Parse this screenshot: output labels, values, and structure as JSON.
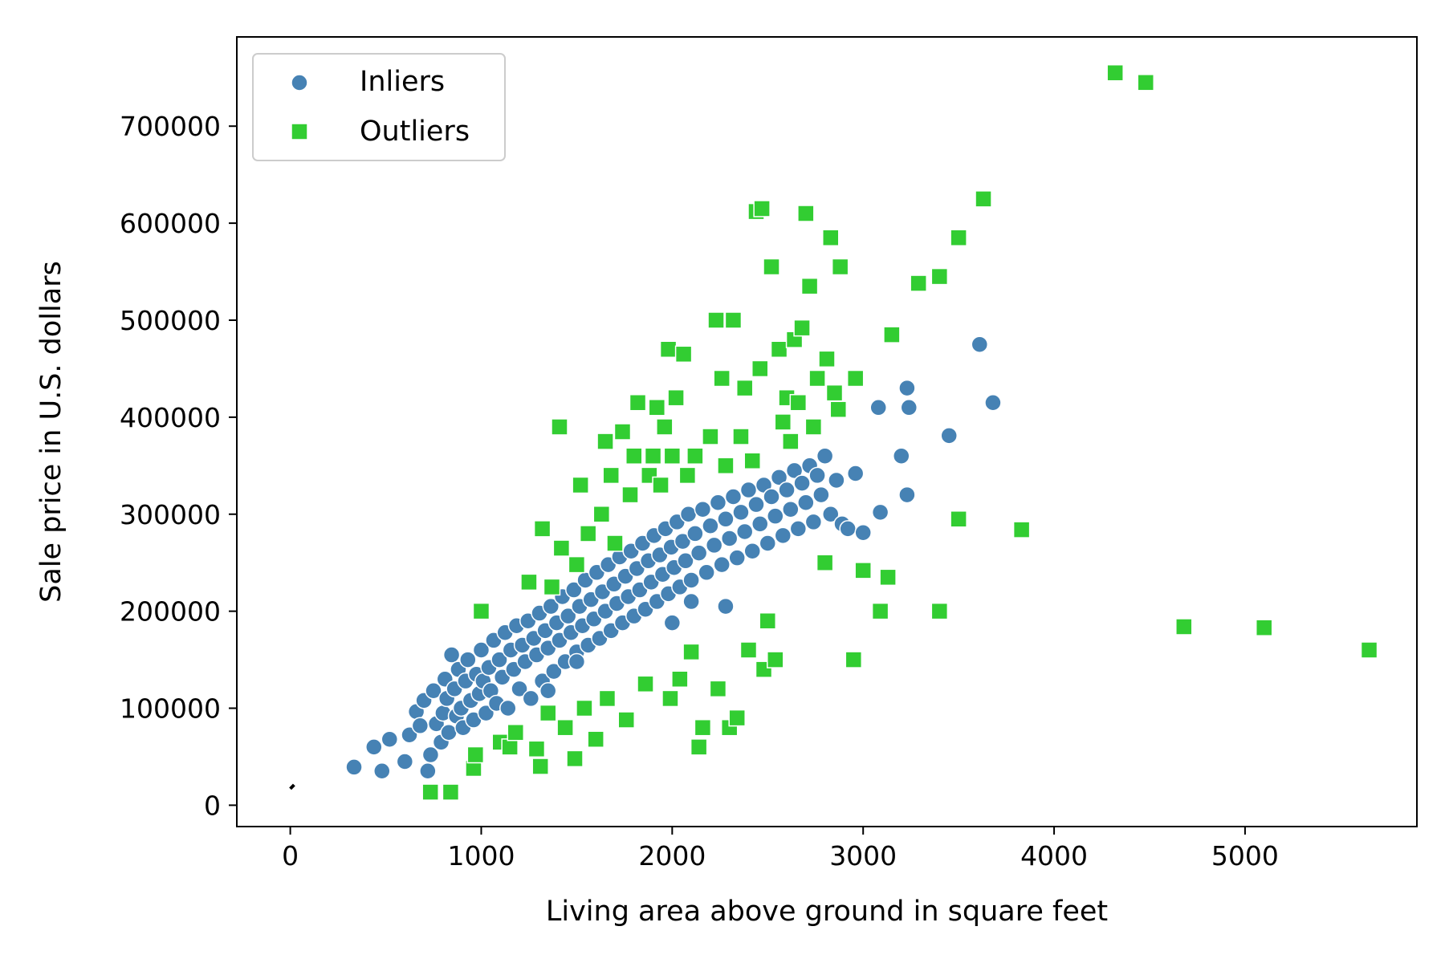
{
  "chart_data": {
    "type": "scatter",
    "title": "",
    "xlabel": "Living area above ground in square feet",
    "ylabel": "Sale price in U.S. dollars",
    "xlim": [
      -280,
      5900
    ],
    "ylim": [
      -22000,
      792000
    ],
    "xticks": [
      0,
      1000,
      2000,
      3000,
      4000,
      5000
    ],
    "yticks": [
      0,
      100000,
      200000,
      300000,
      400000,
      500000,
      600000,
      700000
    ],
    "grid": false,
    "legend_position": "upper left",
    "fit_line": {
      "x": [
        0,
        20
      ],
      "y": [
        17000,
        21000
      ],
      "color": "#000000"
    },
    "series": [
      {
        "name": "Inliers",
        "marker": "circle",
        "color": "#4682b4",
        "points": [
          [
            334,
            39300
          ],
          [
            438,
            60000
          ],
          [
            480,
            35300
          ],
          [
            520,
            68000
          ],
          [
            600,
            45000
          ],
          [
            624,
            72500
          ],
          [
            660,
            96500
          ],
          [
            680,
            82000
          ],
          [
            700,
            108000
          ],
          [
            720,
            35300
          ],
          [
            735,
            52000
          ],
          [
            750,
            118000
          ],
          [
            765,
            84000
          ],
          [
            790,
            65000
          ],
          [
            800,
            95000
          ],
          [
            810,
            130000
          ],
          [
            820,
            110000
          ],
          [
            830,
            75000
          ],
          [
            845,
            155000
          ],
          [
            860,
            120000
          ],
          [
            870,
            92000
          ],
          [
            880,
            140000
          ],
          [
            895,
            100000
          ],
          [
            905,
            80000
          ],
          [
            918,
            128000
          ],
          [
            930,
            150000
          ],
          [
            945,
            108000
          ],
          [
            960,
            88000
          ],
          [
            975,
            135000
          ],
          [
            990,
            115000
          ],
          [
            1000,
            160000
          ],
          [
            1010,
            128000
          ],
          [
            1025,
            95000
          ],
          [
            1040,
            142000
          ],
          [
            1050,
            118000
          ],
          [
            1065,
            170000
          ],
          [
            1080,
            105000
          ],
          [
            1095,
            150000
          ],
          [
            1110,
            132000
          ],
          [
            1125,
            178000
          ],
          [
            1140,
            100000
          ],
          [
            1155,
            160000
          ],
          [
            1170,
            140000
          ],
          [
            1185,
            185000
          ],
          [
            1200,
            120000
          ],
          [
            1215,
            165000
          ],
          [
            1230,
            148000
          ],
          [
            1245,
            190000
          ],
          [
            1260,
            110000
          ],
          [
            1275,
            172000
          ],
          [
            1290,
            155000
          ],
          [
            1305,
            198000
          ],
          [
            1320,
            128000
          ],
          [
            1335,
            180000
          ],
          [
            1350,
            162000
          ],
          [
            1365,
            205000
          ],
          [
            1380,
            138000
          ],
          [
            1395,
            188000
          ],
          [
            1410,
            170000
          ],
          [
            1425,
            215000
          ],
          [
            1440,
            148000
          ],
          [
            1455,
            195000
          ],
          [
            1470,
            178000
          ],
          [
            1485,
            222000
          ],
          [
            1500,
            158000
          ],
          [
            1515,
            205000
          ],
          [
            1530,
            185000
          ],
          [
            1545,
            232000
          ],
          [
            1560,
            165000
          ],
          [
            1575,
            212000
          ],
          [
            1590,
            192000
          ],
          [
            1605,
            240000
          ],
          [
            1620,
            172000
          ],
          [
            1635,
            220000
          ],
          [
            1650,
            200000
          ],
          [
            1665,
            248000
          ],
          [
            1680,
            180000
          ],
          [
            1695,
            228000
          ],
          [
            1710,
            208000
          ],
          [
            1725,
            256000
          ],
          [
            1740,
            188000
          ],
          [
            1755,
            236000
          ],
          [
            1770,
            215000
          ],
          [
            1785,
            262000
          ],
          [
            1800,
            195000
          ],
          [
            1815,
            244000
          ],
          [
            1830,
            222000
          ],
          [
            1845,
            270000
          ],
          [
            1860,
            202000
          ],
          [
            1875,
            252000
          ],
          [
            1890,
            230000
          ],
          [
            1905,
            278000
          ],
          [
            1920,
            210000
          ],
          [
            1935,
            258000
          ],
          [
            1950,
            238000
          ],
          [
            1965,
            285000
          ],
          [
            1980,
            218000
          ],
          [
            1995,
            266000
          ],
          [
            2010,
            245000
          ],
          [
            2025,
            292000
          ],
          [
            2040,
            225000
          ],
          [
            2055,
            272000
          ],
          [
            2070,
            252000
          ],
          [
            2085,
            300000
          ],
          [
            2100,
            232000
          ],
          [
            2120,
            280000
          ],
          [
            2140,
            260000
          ],
          [
            2160,
            305000
          ],
          [
            2180,
            240000
          ],
          [
            2200,
            288000
          ],
          [
            2220,
            268000
          ],
          [
            2240,
            312000
          ],
          [
            2260,
            248000
          ],
          [
            2280,
            295000
          ],
          [
            2300,
            275000
          ],
          [
            2320,
            318000
          ],
          [
            2340,
            255000
          ],
          [
            2360,
            302000
          ],
          [
            2380,
            282000
          ],
          [
            2400,
            325000
          ],
          [
            2420,
            262000
          ],
          [
            2440,
            310000
          ],
          [
            2460,
            290000
          ],
          [
            2480,
            330000
          ],
          [
            2500,
            270000
          ],
          [
            2520,
            318000
          ],
          [
            2540,
            298000
          ],
          [
            2560,
            338000
          ],
          [
            2580,
            278000
          ],
          [
            2600,
            325000
          ],
          [
            2620,
            305000
          ],
          [
            2640,
            345000
          ],
          [
            2660,
            285000
          ],
          [
            2680,
            332000
          ],
          [
            2700,
            312000
          ],
          [
            2720,
            350000
          ],
          [
            2740,
            292000
          ],
          [
            2760,
            340000
          ],
          [
            2780,
            320000
          ],
          [
            2800,
            360000
          ],
          [
            2830,
            300000
          ],
          [
            2860,
            335000
          ],
          [
            2890,
            290000
          ],
          [
            2920,
            285000
          ],
          [
            2960,
            342000
          ],
          [
            3000,
            281000
          ],
          [
            3080,
            410000
          ],
          [
            3090,
            302000
          ],
          [
            3200,
            360000
          ],
          [
            3230,
            430000
          ],
          [
            3230,
            320000
          ],
          [
            3240,
            410000
          ],
          [
            3450,
            381000
          ],
          [
            3610,
            475000
          ],
          [
            3680,
            415000
          ],
          [
            2000,
            188000
          ],
          [
            2280,
            205000
          ],
          [
            1350,
            118000
          ],
          [
            1500,
            148000
          ],
          [
            2100,
            210000
          ]
        ]
      },
      {
        "name": "Outliers",
        "marker": "square",
        "color": "#32cd32",
        "points": [
          [
            734,
            13500
          ],
          [
            840,
            13500
          ],
          [
            960,
            38000
          ],
          [
            970,
            52000
          ],
          [
            1000,
            200000
          ],
          [
            1100,
            65000
          ],
          [
            1150,
            60000
          ],
          [
            1180,
            75000
          ],
          [
            1250,
            230000
          ],
          [
            1290,
            58000
          ],
          [
            1310,
            40000
          ],
          [
            1320,
            285000
          ],
          [
            1350,
            95000
          ],
          [
            1370,
            225000
          ],
          [
            1410,
            390000
          ],
          [
            1420,
            265000
          ],
          [
            1440,
            80000
          ],
          [
            1490,
            48000
          ],
          [
            1500,
            248000
          ],
          [
            1520,
            330000
          ],
          [
            1540,
            100000
          ],
          [
            1560,
            280000
          ],
          [
            1600,
            68000
          ],
          [
            1630,
            300000
          ],
          [
            1650,
            375000
          ],
          [
            1660,
            110000
          ],
          [
            1680,
            340000
          ],
          [
            1700,
            270000
          ],
          [
            1740,
            385000
          ],
          [
            1760,
            88000
          ],
          [
            1780,
            320000
          ],
          [
            1800,
            360000
          ],
          [
            1820,
            415000
          ],
          [
            1860,
            125000
          ],
          [
            1880,
            340000
          ],
          [
            1900,
            360000
          ],
          [
            1920,
            410000
          ],
          [
            1940,
            330000
          ],
          [
            1960,
            390000
          ],
          [
            1980,
            470000
          ],
          [
            1990,
            110000
          ],
          [
            2000,
            360000
          ],
          [
            2020,
            420000
          ],
          [
            2040,
            130000
          ],
          [
            2060,
            465000
          ],
          [
            2080,
            340000
          ],
          [
            2100,
            158000
          ],
          [
            2120,
            360000
          ],
          [
            2140,
            60000
          ],
          [
            2160,
            80000
          ],
          [
            2200,
            380000
          ],
          [
            2230,
            500000
          ],
          [
            2240,
            120000
          ],
          [
            2260,
            440000
          ],
          [
            2280,
            350000
          ],
          [
            2300,
            80000
          ],
          [
            2320,
            500000
          ],
          [
            2340,
            90000
          ],
          [
            2360,
            380000
          ],
          [
            2380,
            430000
          ],
          [
            2400,
            160000
          ],
          [
            2420,
            355000
          ],
          [
            2440,
            612000
          ],
          [
            2460,
            450000
          ],
          [
            2470,
            615000
          ],
          [
            2480,
            140000
          ],
          [
            2500,
            190000
          ],
          [
            2520,
            555000
          ],
          [
            2540,
            150000
          ],
          [
            2560,
            470000
          ],
          [
            2580,
            395000
          ],
          [
            2600,
            420000
          ],
          [
            2620,
            375000
          ],
          [
            2640,
            480000
          ],
          [
            2660,
            415000
          ],
          [
            2680,
            492000
          ],
          [
            2700,
            610000
          ],
          [
            2720,
            535000
          ],
          [
            2740,
            390000
          ],
          [
            2760,
            440000
          ],
          [
            2800,
            250000
          ],
          [
            2810,
            460000
          ],
          [
            2830,
            585000
          ],
          [
            2850,
            425000
          ],
          [
            2870,
            408000
          ],
          [
            2880,
            555000
          ],
          [
            2950,
            150000
          ],
          [
            2960,
            440000
          ],
          [
            3000,
            242000
          ],
          [
            3090,
            200000
          ],
          [
            3130,
            235000
          ],
          [
            3150,
            485000
          ],
          [
            3290,
            538000
          ],
          [
            3400,
            545000
          ],
          [
            3400,
            200000
          ],
          [
            3500,
            585000
          ],
          [
            3500,
            295000
          ],
          [
            3630,
            625000
          ],
          [
            3830,
            284000
          ],
          [
            4320,
            755000
          ],
          [
            4480,
            745000
          ],
          [
            4680,
            184000
          ],
          [
            5100,
            183000
          ],
          [
            5650,
            160000
          ]
        ]
      }
    ]
  }
}
